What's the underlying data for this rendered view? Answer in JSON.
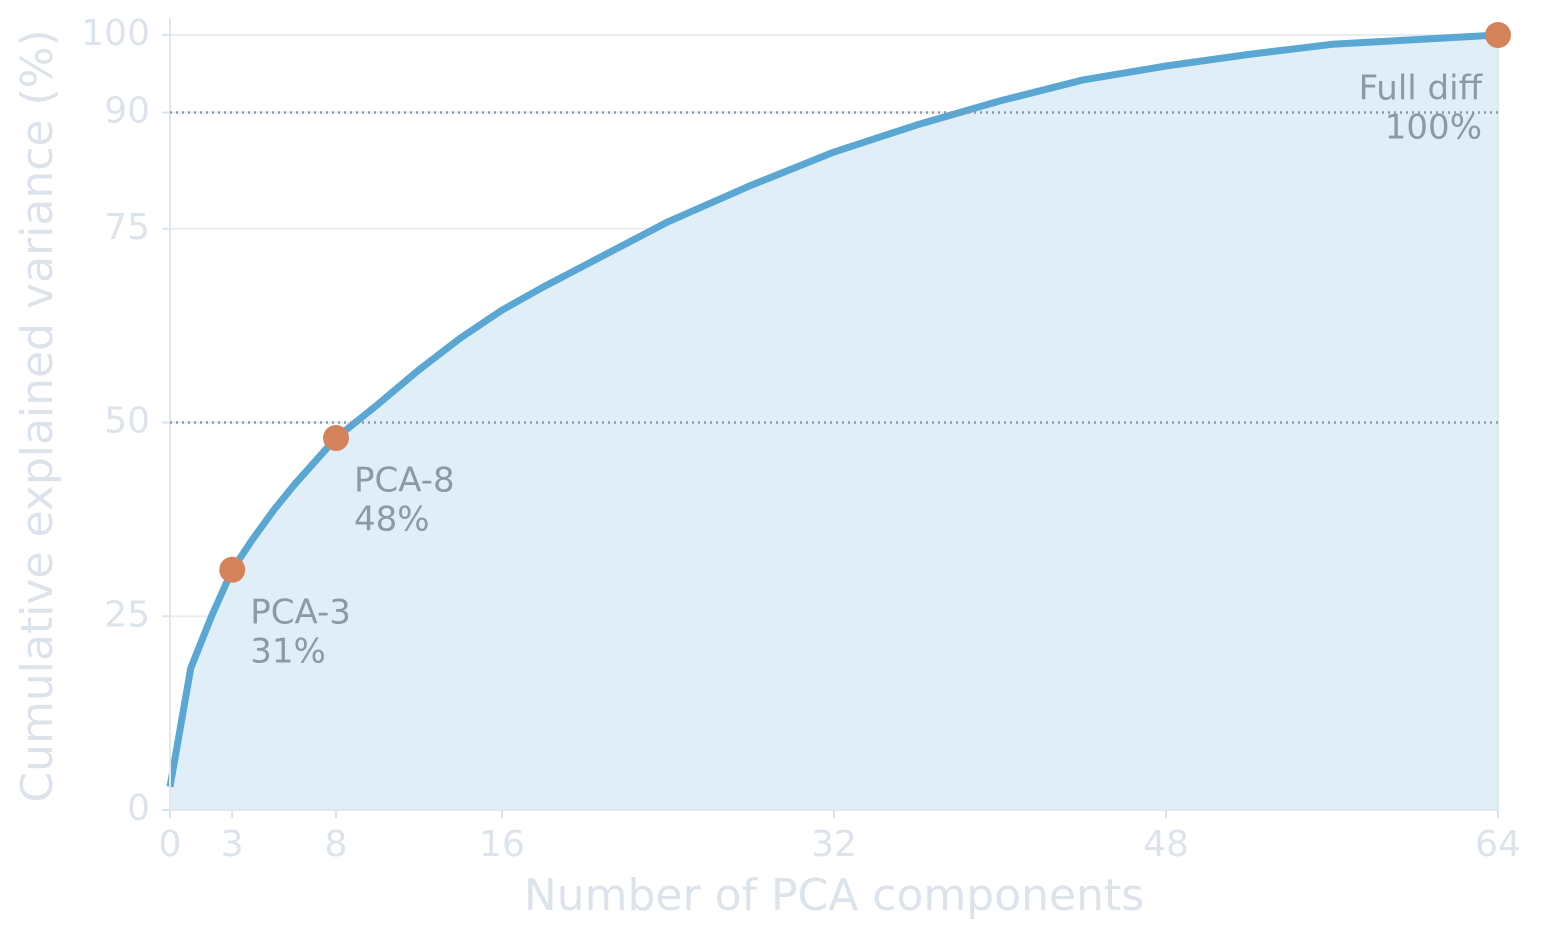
{
  "chart_data": {
    "type": "area",
    "x_label": "Number of PCA components",
    "y_label": "Cumulative explained variance (%)",
    "x": [
      0,
      1,
      2,
      3,
      4,
      5,
      6,
      8,
      10,
      12,
      14,
      16,
      18,
      20,
      24,
      28,
      32,
      36,
      40,
      44,
      48,
      52,
      56,
      60,
      64
    ],
    "values": [
      3,
      18.3,
      25,
      31,
      35,
      38.7,
      42,
      48,
      52.3,
      56.8,
      60.9,
      64.5,
      67.5,
      70.3,
      75.9,
      80.6,
      84.9,
      88.4,
      91.5,
      94.2,
      96,
      97.5,
      98.8,
      99.4,
      100
    ],
    "color": "#5aa7d4",
    "fill_color": "#e0eff7",
    "xlim": [
      0,
      64
    ],
    "xticks": [
      0,
      3,
      8,
      16,
      32,
      48,
      64
    ],
    "ylim": [
      0,
      100
    ],
    "yticks": [
      0,
      25,
      50,
      75,
      90,
      100
    ],
    "grid": true,
    "reference_lines": [
      50,
      90
    ],
    "annotations": [
      {
        "x": 3,
        "y": 31,
        "label": "PCA-3",
        "value_label": "31%"
      },
      {
        "x": 8,
        "y": 48,
        "label": "PCA-8",
        "value_label": "48%"
      },
      {
        "x": 64,
        "y": 100,
        "label": "Full diff",
        "value_label": "100%"
      }
    ],
    "marker_color": "#d4825a"
  }
}
